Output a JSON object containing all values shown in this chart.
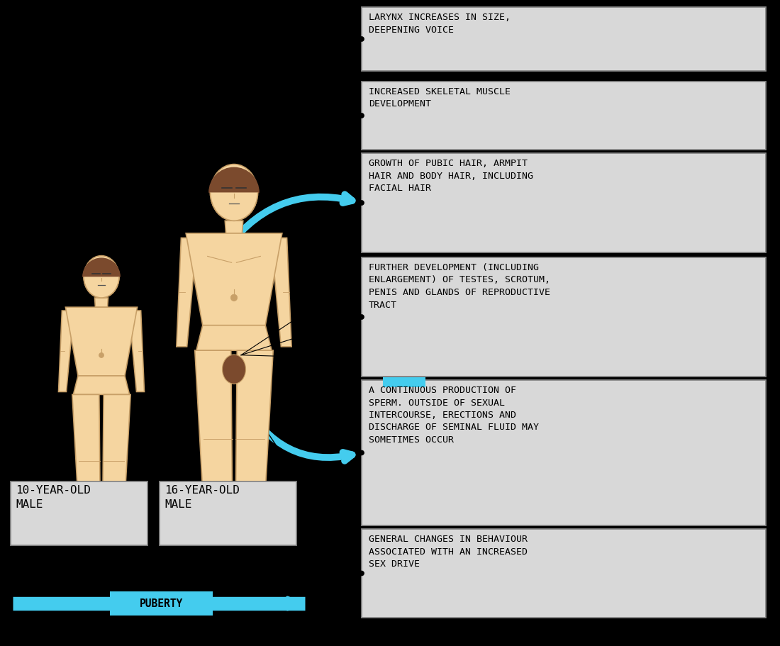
{
  "bg_color": "#000000",
  "skin_color": "#F5D5A0",
  "skin_outline": "#C8A068",
  "hair_color": "#7B4A2D",
  "label_bg": "#D8D8D8",
  "label_edge": "#888888",
  "arrow_color": "#44CCEE",
  "text_color": "#000000",
  "font_family": "monospace",
  "labels": [
    "LARYNX INCREASES IN SIZE,\nDEEPENING VOICE",
    "INCREASED SKELETAL MUSCLE\nDEVELOPMENT",
    "GROWTH OF PUBIC HAIR, ARMPIT\nHAIR AND BODY HAIR, INCLUDING\nFACIAL HAIR",
    "FURTHER DEVELOPMENT (INCLUDING\nENLARGEMENT) OF TESTES, SCROTUM,\nPENIS AND GLANDS OF REPRODUCTIVE\nTRACT",
    "A CONTINUOUS PRODUCTION OF\nSPERM. OUTSIDE OF SEXUAL\nINTERCOURSE, ERECTIONS AND\nDISCHARGE OF SEMINAL FLUID MAY\nSOMETIMES OCCUR",
    "GENERAL CHANGES IN BEHAVIOUR\nASSOCIATED WITH AN INCREASED\nSEX DRIVE"
  ],
  "label1_text": "10-YEAR-OLD\nMALE",
  "label2_text": "16-YEAR-OLD\nMALE",
  "puberty_text": "PUBERTY",
  "fig_width": 11.0,
  "fig_height": 9.11,
  "dpi": 100
}
